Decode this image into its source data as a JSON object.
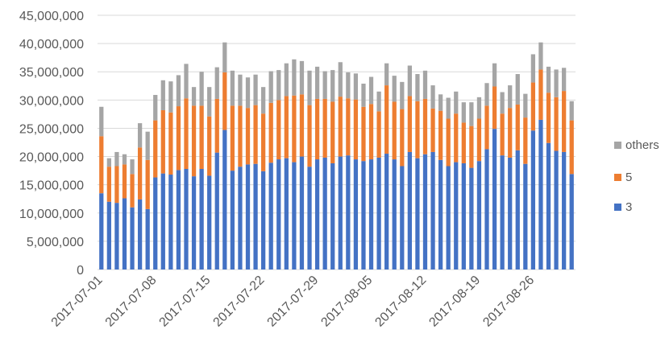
{
  "chart_data": {
    "type": "bar",
    "stacked": true,
    "x_tick_labels": [
      "2017-07-01",
      "2017-07-08",
      "2017-07-15",
      "2017-07-22",
      "2017-07-29",
      "2017-08-05",
      "2017-08-12",
      "2017-08-19",
      "2017-08-26"
    ],
    "y_tick_labels": [
      "0",
      "5,000,000",
      "10,000,000",
      "15,000,000",
      "20,000,000",
      "25,000,000",
      "30,000,000",
      "35,000,000",
      "40,000,000",
      "45,000,000"
    ],
    "ylim": [
      0,
      45000000
    ],
    "grid": true,
    "legend_position": "right",
    "categories": [
      "2017-07-01",
      "2017-07-02",
      "2017-07-03",
      "2017-07-04",
      "2017-07-05",
      "2017-07-06",
      "2017-07-07",
      "2017-07-08",
      "2017-07-09",
      "2017-07-10",
      "2017-07-11",
      "2017-07-12",
      "2017-07-13",
      "2017-07-14",
      "2017-07-15",
      "2017-07-16",
      "2017-07-17",
      "2017-07-18",
      "2017-07-19",
      "2017-07-20",
      "2017-07-21",
      "2017-07-22",
      "2017-07-23",
      "2017-07-24",
      "2017-07-25",
      "2017-07-26",
      "2017-07-27",
      "2017-07-28",
      "2017-07-29",
      "2017-07-30",
      "2017-07-31",
      "2017-08-01",
      "2017-08-02",
      "2017-08-03",
      "2017-08-04",
      "2017-08-05",
      "2017-08-06",
      "2017-08-07",
      "2017-08-08",
      "2017-08-09",
      "2017-08-10",
      "2017-08-11",
      "2017-08-12",
      "2017-08-13",
      "2017-08-14",
      "2017-08-15",
      "2017-08-16",
      "2017-08-17",
      "2017-08-18",
      "2017-08-19",
      "2017-08-20",
      "2017-08-21",
      "2017-08-22",
      "2017-08-23",
      "2017-08-24",
      "2017-08-25",
      "2017-08-26",
      "2017-08-27",
      "2017-08-28",
      "2017-08-29",
      "2017-08-30",
      "2017-08-31"
    ],
    "series": [
      {
        "name": "3",
        "color": "#4472C4",
        "values": [
          13500000,
          12000000,
          11800000,
          12600000,
          11000000,
          12400000,
          10700000,
          16300000,
          17000000,
          16800000,
          17600000,
          17800000,
          16500000,
          17800000,
          16600000,
          20700000,
          24700000,
          17500000,
          18200000,
          18600000,
          18700000,
          17400000,
          18900000,
          19500000,
          19700000,
          19000000,
          20000000,
          18200000,
          19500000,
          19800000,
          18800000,
          20000000,
          20200000,
          19500000,
          19200000,
          19500000,
          19800000,
          20500000,
          19500000,
          18300000,
          20800000,
          19700000,
          20400000,
          20800000,
          19400000,
          18300000,
          19000000,
          18800000,
          18000000,
          19200000,
          21300000,
          24900000,
          20200000,
          19800000,
          21100000,
          18700000,
          24600000,
          26500000,
          22400000,
          21000000,
          20800000,
          16900000
        ]
      },
      {
        "name": "5",
        "color": "#ED7D31",
        "values": [
          10100000,
          6200000,
          6500000,
          6000000,
          5900000,
          9200000,
          8700000,
          10100000,
          11200000,
          11000000,
          11300000,
          12500000,
          12500000,
          11200000,
          10500000,
          9500000,
          10200000,
          11500000,
          10800000,
          10000000,
          10400000,
          10200000,
          10600000,
          10500000,
          11000000,
          11800000,
          11000000,
          10900000,
          10700000,
          10400000,
          10900000,
          10600000,
          10100000,
          10600000,
          9600000,
          9800000,
          8200000,
          12100000,
          10200000,
          10100000,
          9900000,
          10100000,
          9800000,
          7700000,
          8700000,
          8400000,
          8600000,
          7200000,
          7400000,
          7500000,
          7700000,
          7500000,
          7400000,
          8800000,
          8100000,
          8200000,
          8500000,
          8900000,
          8900000,
          9500000,
          10800000,
          9500000
        ]
      },
      {
        "name": "others",
        "color": "#A5A5A5",
        "values": [
          5200000,
          1500000,
          2500000,
          1800000,
          2600000,
          4300000,
          5000000,
          4500000,
          5300000,
          5500000,
          5500000,
          6100000,
          3300000,
          6000000,
          5200000,
          5600000,
          5300000,
          6200000,
          5500000,
          5400000,
          5400000,
          4700000,
          5600000,
          5300000,
          5800000,
          6400000,
          5900000,
          6100000,
          5700000,
          4900000,
          5600000,
          6100000,
          4600000,
          4600000,
          4100000,
          4800000,
          3500000,
          3900000,
          4600000,
          4800000,
          5400000,
          4800000,
          5000000,
          4100000,
          2900000,
          3700000,
          3900000,
          3600000,
          4200000,
          3800000,
          4000000,
          4100000,
          3800000,
          4000000,
          5400000,
          4200000,
          5000000,
          4800000,
          4600000,
          4900000,
          4100000,
          3400000
        ]
      }
    ],
    "legend_order": [
      "others",
      "5",
      "3"
    ],
    "gridline_color": "#D9D9D9"
  }
}
